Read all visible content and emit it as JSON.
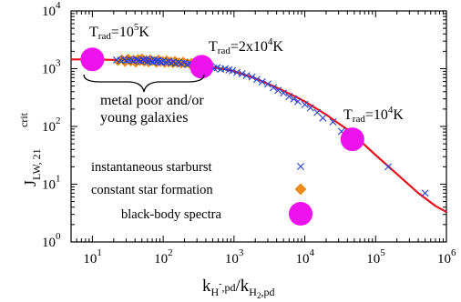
{
  "chart_data": {
    "type": "scatter",
    "title": "",
    "xlabel": {
      "base": "k",
      "sub1": "H",
      "sup1": "-",
      "sub1b": ",pd",
      "mid": "/k",
      "sub2": "H",
      "sub2n": "2",
      "sub2b": ",pd"
    },
    "ylabel": {
      "base": "J",
      "sub": "LW, 21",
      "sup": "crit"
    },
    "x_scale": "log",
    "y_scale": "log",
    "xlim": [
      5,
      1000000
    ],
    "ylim": [
      1,
      10000
    ],
    "x_ticks": [
      {
        "value": 10,
        "base": "10",
        "exp": "1"
      },
      {
        "value": 100,
        "base": "10",
        "exp": "2"
      },
      {
        "value": 1000,
        "base": "10",
        "exp": "3"
      },
      {
        "value": 10000,
        "base": "10",
        "exp": "4"
      },
      {
        "value": 100000,
        "base": "10",
        "exp": "5"
      },
      {
        "value": 1000000,
        "base": "10",
        "exp": "6"
      }
    ],
    "y_ticks": [
      {
        "value": 1,
        "base": "10",
        "exp": "0"
      },
      {
        "value": 10,
        "base": "10",
        "exp": "1"
      },
      {
        "value": 100,
        "base": "10",
        "exp": "2"
      },
      {
        "value": 1000,
        "base": "10",
        "exp": "3"
      },
      {
        "value": 10000,
        "base": "10",
        "exp": "4"
      }
    ],
    "fit_curve": {
      "color": "#e8101a",
      "points": [
        [
          5,
          1450
        ],
        [
          10,
          1440
        ],
        [
          20,
          1420
        ],
        [
          50,
          1380
        ],
        [
          100,
          1330
        ],
        [
          200,
          1250
        ],
        [
          400,
          1120
        ],
        [
          700,
          990
        ],
        [
          1000,
          900
        ],
        [
          2000,
          680
        ],
        [
          4000,
          470
        ],
        [
          7000,
          340
        ],
        [
          10000,
          270
        ],
        [
          20000,
          160
        ],
        [
          40000,
          88
        ],
        [
          60000,
          57
        ],
        [
          100000,
          32
        ],
        [
          200000,
          15
        ],
        [
          400000,
          7
        ],
        [
          700000,
          4.2
        ],
        [
          1000000,
          3.3
        ]
      ]
    },
    "series": [
      {
        "name": "instantaneous starburst",
        "marker": "cross",
        "color": "#2a3fd4",
        "points": [
          [
            22,
            1420
          ],
          [
            25,
            1400
          ],
          [
            28,
            1460
          ],
          [
            30,
            1380
          ],
          [
            33,
            1430
          ],
          [
            36,
            1410
          ],
          [
            38,
            1360
          ],
          [
            42,
            1440
          ],
          [
            45,
            1390
          ],
          [
            48,
            1350
          ],
          [
            52,
            1420
          ],
          [
            55,
            1380
          ],
          [
            58,
            1460
          ],
          [
            60,
            1330
          ],
          [
            64,
            1410
          ],
          [
            68,
            1370
          ],
          [
            72,
            1300
          ],
          [
            75,
            1430
          ],
          [
            80,
            1350
          ],
          [
            85,
            1390
          ],
          [
            90,
            1320
          ],
          [
            95,
            1280
          ],
          [
            100,
            1360
          ],
          [
            110,
            1300
          ],
          [
            120,
            1340
          ],
          [
            130,
            1260
          ],
          [
            140,
            1310
          ],
          [
            150,
            1240
          ],
          [
            165,
            1280
          ],
          [
            180,
            1220
          ],
          [
            200,
            1260
          ],
          [
            220,
            1190
          ],
          [
            240,
            1230
          ],
          [
            270,
            1150
          ],
          [
            300,
            1190
          ],
          [
            340,
            1120
          ],
          [
            380,
            1150
          ],
          [
            420,
            1060
          ],
          [
            470,
            1090
          ],
          [
            520,
            1020
          ],
          [
            580,
            1040
          ],
          [
            650,
            980
          ],
          [
            750,
            1000
          ],
          [
            850,
            950
          ],
          [
            950,
            920
          ],
          [
            1100,
            860
          ],
          [
            1300,
            820
          ],
          [
            1500,
            760
          ],
          [
            1800,
            720
          ],
          [
            2100,
            650
          ],
          [
            2500,
            590
          ],
          [
            3000,
            540
          ],
          [
            3600,
            470
          ],
          [
            4200,
            420
          ],
          [
            5000,
            380
          ],
          [
            6000,
            330
          ],
          [
            7000,
            300
          ],
          [
            8000,
            270
          ],
          [
            10000,
            240
          ],
          [
            12000,
            210
          ],
          [
            15000,
            175
          ],
          [
            18000,
            140
          ],
          [
            25000,
            120
          ],
          [
            33000,
            82
          ],
          [
            40000,
            72
          ],
          [
            150000,
            20
          ],
          [
            500000,
            7
          ]
        ]
      },
      {
        "name": "constant star formation",
        "marker": "diamond",
        "color": "#ee8a1c",
        "points": [
          [
            23,
            1300
          ],
          [
            26,
            1520
          ],
          [
            29,
            1250
          ],
          [
            32,
            1560
          ],
          [
            35,
            1280
          ],
          [
            38,
            1500
          ],
          [
            41,
            1220
          ],
          [
            44,
            1540
          ],
          [
            47,
            1300
          ],
          [
            50,
            1580
          ],
          [
            54,
            1260
          ],
          [
            58,
            1480
          ],
          [
            62,
            1230
          ],
          [
            66,
            1520
          ],
          [
            70,
            1290
          ],
          [
            75,
            1440
          ],
          [
            80,
            1210
          ],
          [
            86,
            1500
          ],
          [
            92,
            1250
          ],
          [
            98,
            1420
          ],
          [
            105,
            1200
          ],
          [
            112,
            1470
          ],
          [
            120,
            1230
          ],
          [
            128,
            1390
          ],
          [
            137,
            1190
          ],
          [
            146,
            1430
          ],
          [
            156,
            1210
          ],
          [
            167,
            1350
          ],
          [
            180,
            1170
          ],
          [
            192,
            1380
          ],
          [
            205,
            1180
          ],
          [
            220,
            1300
          ],
          [
            236,
            1150
          ],
          [
            252,
            1320
          ],
          [
            270,
            1120
          ],
          [
            290,
            1220
          ],
          [
            310,
            1100
          ],
          [
            330,
            1190
          ]
        ]
      },
      {
        "name": "black-body spectra",
        "marker": "circle",
        "color": "#ee12ee",
        "points": [
          [
            10,
            1450
          ],
          [
            350,
            1080
          ],
          [
            47000,
            60
          ]
        ]
      }
    ],
    "annotations": [
      {
        "id": "t1",
        "base": "T",
        "sub": "rad",
        "eq": "=10",
        "sup": "5",
        "unit": "K"
      },
      {
        "id": "t2",
        "base": "T",
        "sub": "rad",
        "eq": "=2x10",
        "sup": "4",
        "unit": "K"
      },
      {
        "id": "t3",
        "base": "T",
        "sub": "rad",
        "eq": "=10",
        "sup": "4",
        "unit": "K"
      },
      {
        "id": "brace",
        "lines": [
          "metal poor and/or",
          "young galaxies"
        ]
      }
    ],
    "legend": {
      "placement": "bottom-left",
      "entries": [
        "instantaneous starburst",
        "constant star formation",
        "black-body spectra"
      ]
    },
    "grid": false
  }
}
